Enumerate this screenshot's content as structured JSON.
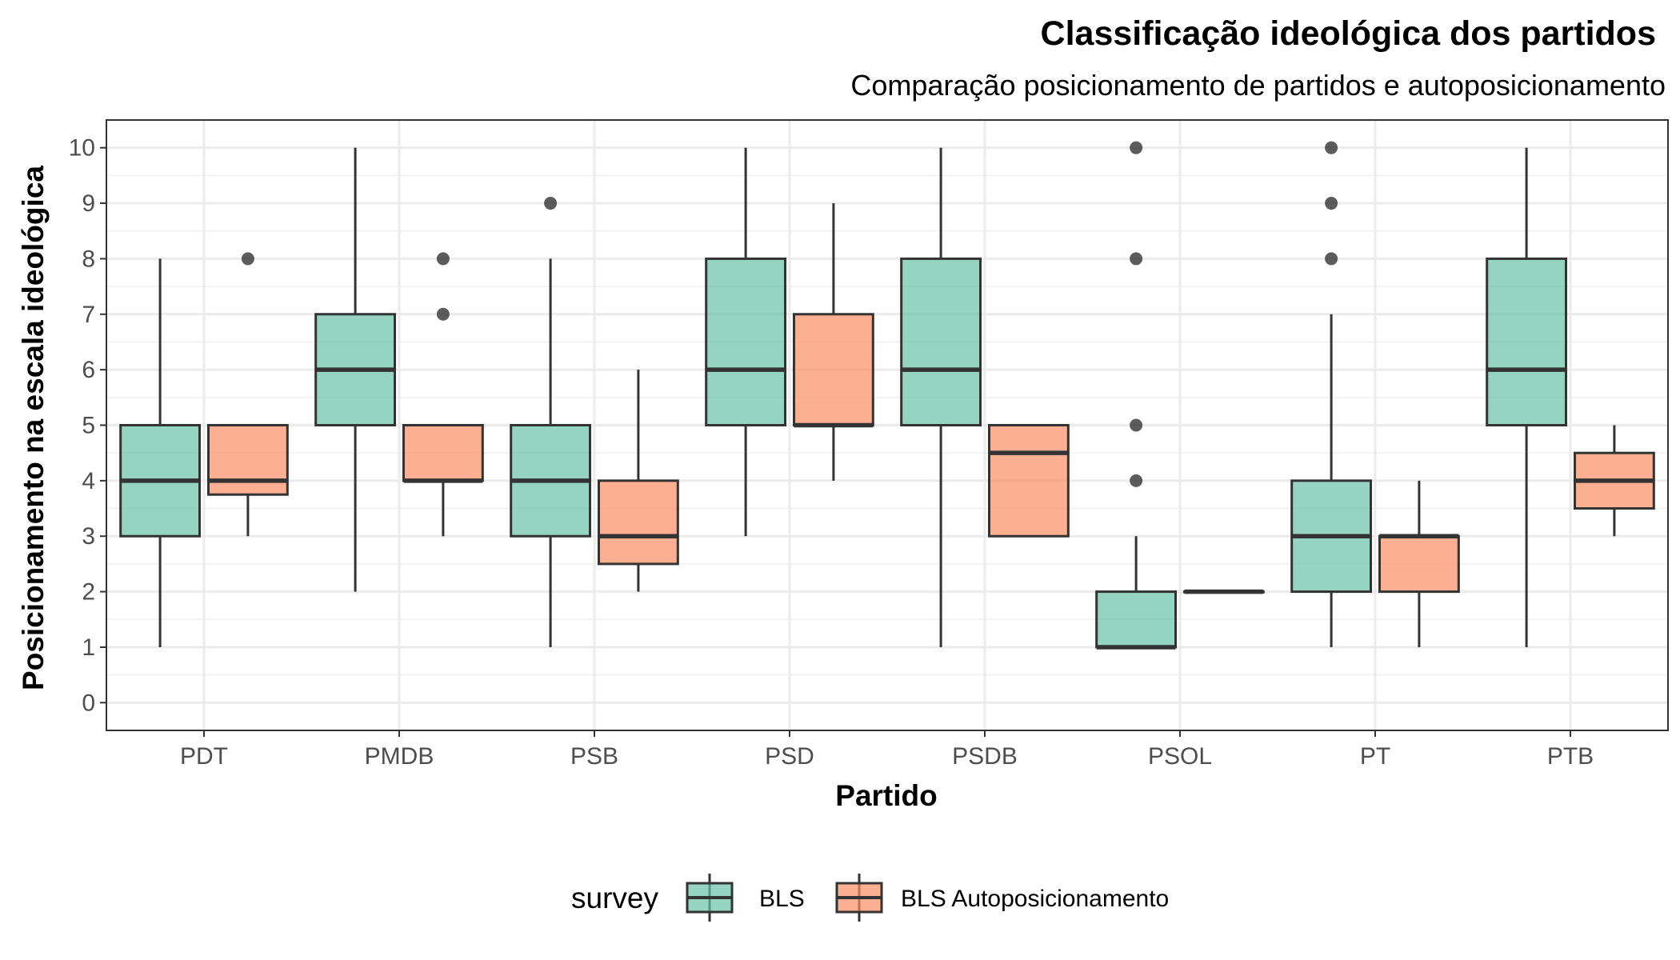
{
  "chart_data": {
    "type": "boxplot",
    "title": "Classificação ideológica dos partidos",
    "subtitle": "Comparação posicionamento de partidos e autoposicionamento",
    "xlabel": "Partido",
    "ylabel": "Posicionamento na escala ideológica",
    "categories": [
      "PDT",
      "PMDB",
      "PSB",
      "PSD",
      "PSDB",
      "PSOL",
      "PT",
      "PTB"
    ],
    "ylim": [
      -0.5,
      10.5
    ],
    "yticks": [
      "0",
      "1",
      "2",
      "3",
      "4",
      "5",
      "6",
      "7",
      "8",
      "9",
      "10"
    ],
    "grid": true,
    "legend": {
      "title": "survey",
      "position": "bottom"
    },
    "series": [
      {
        "name": "BLS",
        "color": "#66c2a5",
        "boxes": [
          {
            "category": "PDT",
            "lower_whisker": 1,
            "q1": 3,
            "median": 4,
            "q3": 5,
            "upper_whisker": 8,
            "outliers": []
          },
          {
            "category": "PMDB",
            "lower_whisker": 2,
            "q1": 5,
            "median": 6,
            "q3": 7,
            "upper_whisker": 10,
            "outliers": []
          },
          {
            "category": "PSB",
            "lower_whisker": 1,
            "q1": 3,
            "median": 4,
            "q3": 5,
            "upper_whisker": 8,
            "outliers": [
              9
            ]
          },
          {
            "category": "PSD",
            "lower_whisker": 3,
            "q1": 5,
            "median": 6,
            "q3": 8,
            "upper_whisker": 10,
            "outliers": []
          },
          {
            "category": "PSDB",
            "lower_whisker": 1,
            "q1": 5,
            "median": 6,
            "q3": 8,
            "upper_whisker": 10,
            "outliers": []
          },
          {
            "category": "PSOL",
            "lower_whisker": 1,
            "q1": 1,
            "median": 1,
            "q3": 2,
            "upper_whisker": 3,
            "outliers": [
              4,
              5,
              8,
              10
            ]
          },
          {
            "category": "PT",
            "lower_whisker": 1,
            "q1": 2,
            "median": 3,
            "q3": 4,
            "upper_whisker": 7,
            "outliers": [
              8,
              9,
              10
            ]
          },
          {
            "category": "PTB",
            "lower_whisker": 1,
            "q1": 5,
            "median": 6,
            "q3": 8,
            "upper_whisker": 10,
            "outliers": []
          }
        ]
      },
      {
        "name": "BLS Autoposicionamento",
        "color": "#fc8d62",
        "boxes": [
          {
            "category": "PDT",
            "lower_whisker": 3,
            "q1": 3.75,
            "median": 4,
            "q3": 5,
            "upper_whisker": 5,
            "outliers": [
              8
            ]
          },
          {
            "category": "PMDB",
            "lower_whisker": 3,
            "q1": 4,
            "median": 4,
            "q3": 5,
            "upper_whisker": 5,
            "outliers": [
              7,
              8
            ]
          },
          {
            "category": "PSB",
            "lower_whisker": 2,
            "q1": 2.5,
            "median": 3,
            "q3": 4,
            "upper_whisker": 6,
            "outliers": []
          },
          {
            "category": "PSD",
            "lower_whisker": 4,
            "q1": 5,
            "median": 5,
            "q3": 7,
            "upper_whisker": 9,
            "outliers": []
          },
          {
            "category": "PSDB",
            "lower_whisker": 3,
            "q1": 3,
            "median": 4.5,
            "q3": 5,
            "upper_whisker": 5,
            "outliers": []
          },
          {
            "category": "PSOL",
            "lower_whisker": 2,
            "q1": 2,
            "median": 2,
            "q3": 2,
            "upper_whisker": 2,
            "outliers": []
          },
          {
            "category": "PT",
            "lower_whisker": 1,
            "q1": 2,
            "median": 3,
            "q3": 3,
            "upper_whisker": 4,
            "outliers": []
          },
          {
            "category": "PTB",
            "lower_whisker": 3,
            "q1": 3.5,
            "median": 4,
            "q3": 4.5,
            "upper_whisker": 5,
            "outliers": []
          }
        ]
      }
    ]
  }
}
